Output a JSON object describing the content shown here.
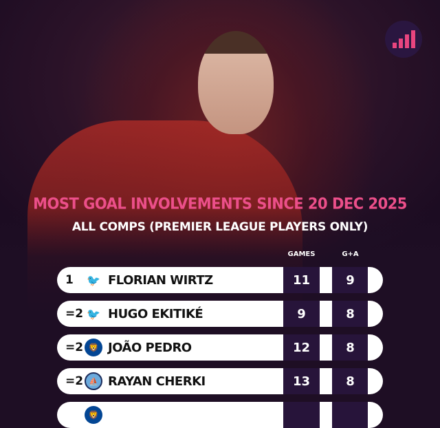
{
  "title": "MOST GOAL INVOLVEMENTS SINCE 20 DEC 2025",
  "subtitle": "ALL COMPS (PREMIER LEAGUE PLAYERS ONLY)",
  "columns": {
    "games": "GAMES",
    "ga": "G+A"
  },
  "colors": {
    "accent": "#ec4f8a",
    "background": "#1e0e24",
    "stat_cell": "#27143a"
  },
  "rows": [
    {
      "rank": "1",
      "club": "Liverpool",
      "crest_icon": "liverpool-crest-icon",
      "name": "FLORIAN WIRTZ",
      "games": "11",
      "ga": "9"
    },
    {
      "rank": "=2",
      "club": "Liverpool",
      "crest_icon": "liverpool-crest-icon",
      "name": "HUGO EKITIKÉ",
      "games": "9",
      "ga": "8"
    },
    {
      "rank": "=2",
      "club": "Chelsea",
      "crest_icon": "chelsea-crest-icon",
      "name": "JOÃO PEDRO",
      "games": "12",
      "ga": "8"
    },
    {
      "rank": "=2",
      "club": "Manchester City",
      "crest_icon": "man-city-crest-icon",
      "name": "RAYAN CHERKI",
      "games": "13",
      "ga": "8"
    },
    {
      "rank": "",
      "club": "Chelsea",
      "crest_icon": "chelsea-crest-icon",
      "name": "",
      "games": "",
      "ga": ""
    }
  ]
}
